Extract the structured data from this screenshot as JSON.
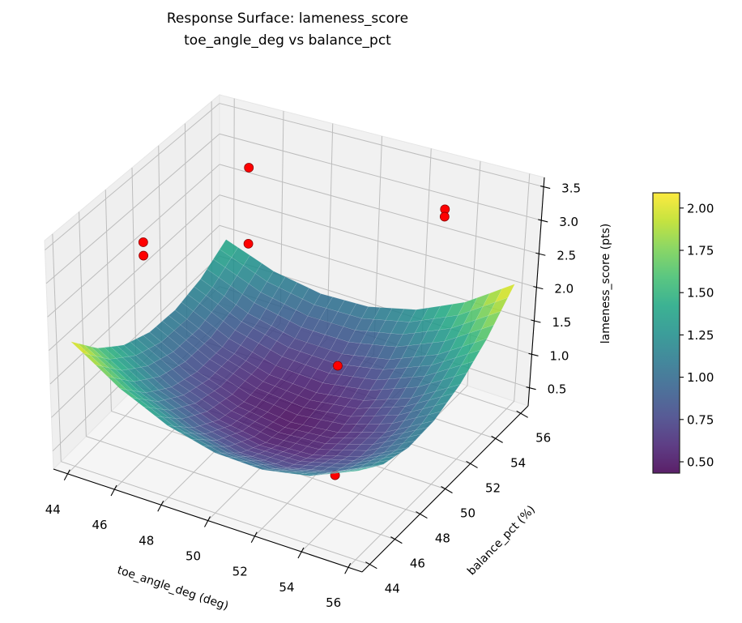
{
  "chart_data": {
    "type": "surface",
    "title": [
      "Response Surface: lameness_score",
      "toe_angle_deg vs balance_pct"
    ],
    "xlabel": "toe_angle_deg (deg)",
    "ylabel": "balance_pct (%)",
    "zlabel": "lameness_score (pts)",
    "xlim": [
      43.4,
      56.6
    ],
    "ylim": [
      43.4,
      56.6
    ],
    "zlim": [
      0.23,
      3.64
    ],
    "xticks": [
      44,
      46,
      48,
      50,
      52,
      54,
      56
    ],
    "yticks": [
      44,
      46,
      48,
      50,
      52,
      54,
      56
    ],
    "zticks": [
      "0.5",
      "1.0",
      "1.5",
      "2.0",
      "2.5",
      "3.0",
      "3.5"
    ],
    "grid": true,
    "colormap": "viridis",
    "surface": {
      "x": [
        44,
        46,
        48,
        50,
        52,
        54,
        56
      ],
      "y": [
        44,
        46,
        48,
        50,
        52,
        54,
        56
      ],
      "z": [
        [
          2.091,
          1.606,
          1.272,
          1.091,
          1.062,
          1.184,
          1.459
        ],
        [
          1.634,
          1.183,
          0.885,
          0.739,
          0.745,
          0.903,
          1.212
        ],
        [
          1.316,
          0.901,
          0.638,
          0.527,
          0.568,
          0.761,
          1.106
        ],
        [
          1.141,
          0.761,
          0.533,
          0.457,
          0.533,
          0.761,
          1.141
        ],
        [
          1.106,
          0.761,
          0.568,
          0.527,
          0.638,
          0.901,
          1.316
        ],
        [
          1.212,
          0.903,
          0.745,
          0.739,
          0.885,
          1.183,
          1.634
        ],
        [
          1.459,
          1.184,
          1.062,
          1.091,
          1.272,
          1.606,
          2.091
        ]
      ]
    },
    "scatter": {
      "color": "#ff0000",
      "points": [
        {
          "x": 46,
          "y": 46,
          "z": 3.43
        },
        {
          "x": 46,
          "y": 46,
          "z": 3.23
        },
        {
          "x": 46,
          "y": 54,
          "z": 3.2
        },
        {
          "x": 46,
          "y": 54,
          "z": 2.0
        },
        {
          "x": 54,
          "y": 54,
          "z": 3.35
        },
        {
          "x": 54,
          "y": 54,
          "z": 3.24
        },
        {
          "x": 54,
          "y": 46,
          "z": 2.4
        },
        {
          "x": 54,
          "y": 46,
          "z": 0.85
        }
      ]
    },
    "colorbar": {
      "vmin": 0.433,
      "vmax": 2.09,
      "ticks": [
        "0.50",
        "0.75",
        "1.00",
        "1.25",
        "1.50",
        "1.75",
        "2.00"
      ]
    }
  }
}
